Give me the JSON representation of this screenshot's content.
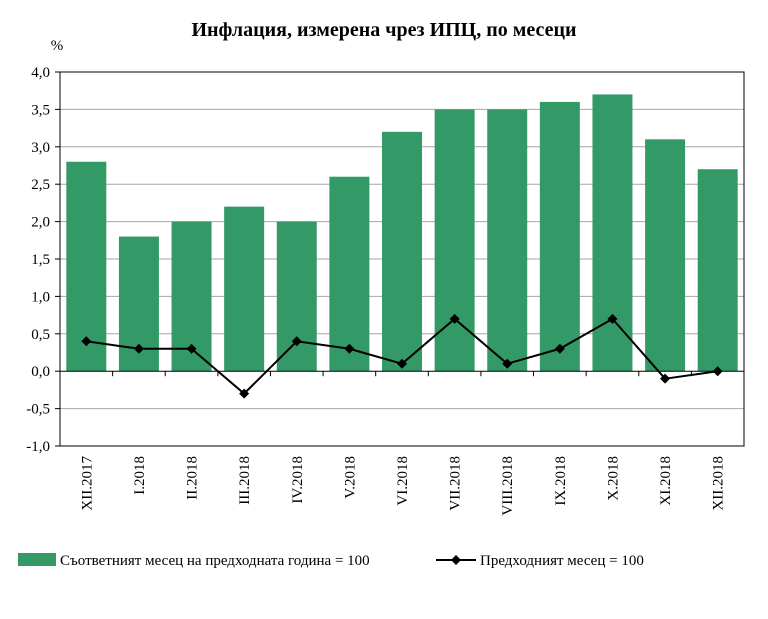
{
  "chart_data": {
    "type": "bar",
    "title": "Инфлация, измерена чрез ИПЦ, по месеци",
    "ylabel": "%",
    "ylim": [
      -1.0,
      4.0
    ],
    "yticks": [
      {
        "value": 4.0,
        "label": "4,0"
      },
      {
        "value": 3.5,
        "label": "3,5"
      },
      {
        "value": 3.0,
        "label": "3,0"
      },
      {
        "value": 2.5,
        "label": "2,5"
      },
      {
        "value": 2.0,
        "label": "2,0"
      },
      {
        "value": 1.5,
        "label": "1,5"
      },
      {
        "value": 1.0,
        "label": "1,0"
      },
      {
        "value": 0.5,
        "label": "0,5"
      },
      {
        "value": 0.0,
        "label": "0,0"
      },
      {
        "value": -0.5,
        "label": "-0,5"
      },
      {
        "value": -1.0,
        "label": "-1,0"
      }
    ],
    "grid": true,
    "categories": [
      "XII.2017",
      "I.2018",
      "II.2018",
      "III.2018",
      "IV.2018",
      "V.2018",
      "VI.2018",
      "VII.2018",
      "VIII.2018",
      "IX.2018",
      "X.2018",
      "XI.2018",
      "XII.2018"
    ],
    "series": [
      {
        "name": "Съответният месец на предходната година = 100",
        "type": "bar",
        "color": "#339966",
        "values": [
          2.8,
          1.8,
          2.0,
          2.2,
          2.0,
          2.6,
          3.2,
          3.5,
          3.5,
          3.6,
          3.7,
          3.1,
          2.7
        ]
      },
      {
        "name": "Предходният месец = 100",
        "type": "line",
        "color": "#000000",
        "marker": "diamond",
        "values": [
          0.4,
          0.3,
          0.3,
          -0.3,
          0.4,
          0.3,
          0.1,
          0.7,
          0.1,
          0.3,
          0.7,
          -0.1,
          0.0
        ]
      }
    ],
    "legend": "bottom"
  }
}
